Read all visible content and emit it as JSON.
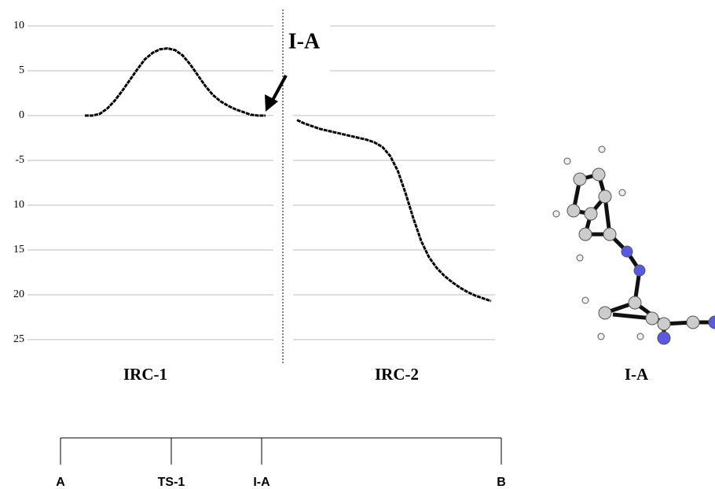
{
  "chart_data": {
    "type": "line",
    "ylim": [
      -25,
      10
    ],
    "yticks": [
      {
        "value": -25,
        "label": "25"
      },
      {
        "value": -20,
        "label": "20"
      },
      {
        "value": -15,
        "label": "15"
      },
      {
        "value": -10,
        "label": "10"
      },
      -5,
      0,
      5,
      10
    ],
    "grid": true,
    "series": [
      {
        "name": "IRC-1",
        "color": "#000000",
        "values": [
          0,
          0,
          0.2,
          0.8,
          1.7,
          2.8,
          4.0,
          5.2,
          6.3,
          7.0,
          7.4,
          7.5,
          7.3,
          6.7,
          5.7,
          4.5,
          3.3,
          2.3,
          1.6,
          1.1,
          0.7,
          0.4,
          0.1,
          0,
          0
        ]
      },
      {
        "name": "IRC-2",
        "color": "#000000",
        "values": [
          -0.5,
          -0.9,
          -1.2,
          -1.5,
          -1.7,
          -1.9,
          -2.1,
          -2.3,
          -2.5,
          -2.7,
          -3.0,
          -3.5,
          -4.5,
          -6.2,
          -8.7,
          -11.5,
          -14.0,
          -15.8,
          -17.0,
          -17.9,
          -18.6,
          -19.2,
          -19.7,
          -20.1,
          -20.4,
          -20.7
        ]
      }
    ],
    "annotation": "I-A",
    "structure_label": "I-A",
    "reaction_path": [
      "A",
      "TS-1",
      "I-A",
      "B"
    ]
  }
}
